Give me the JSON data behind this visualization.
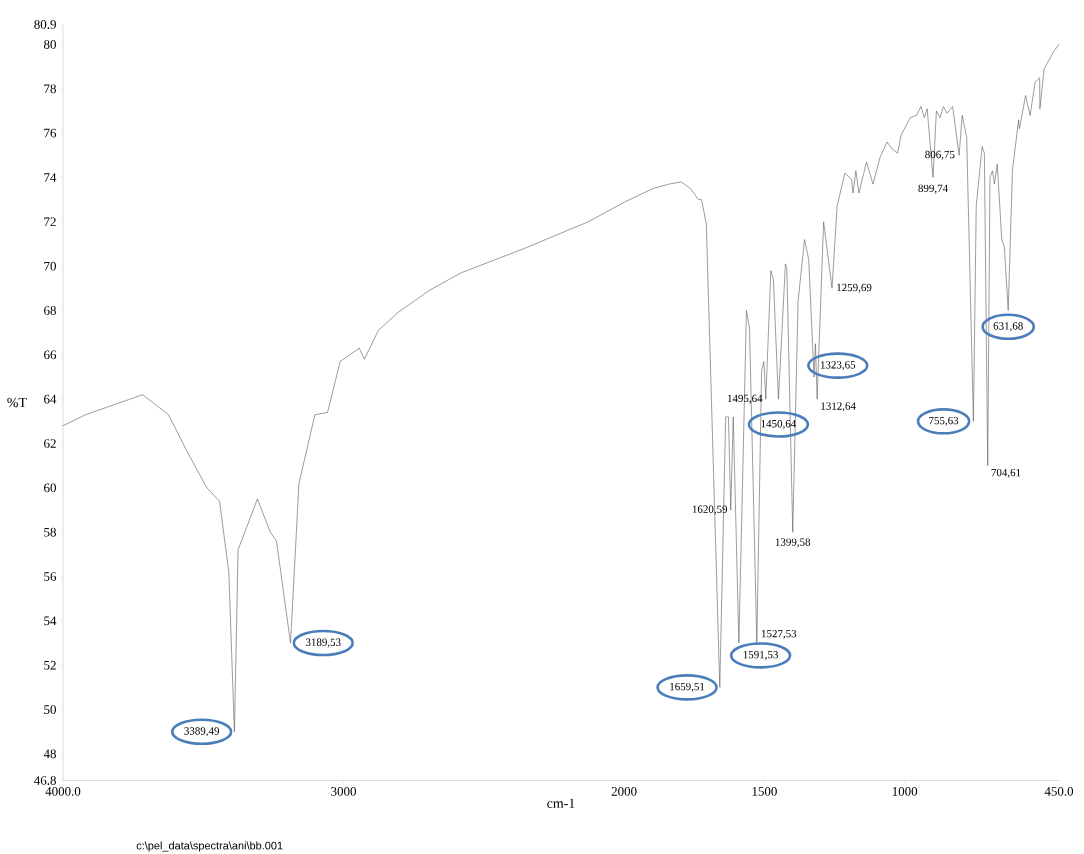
{
  "chart_data": {
    "type": "line",
    "xlabel": "cm-1",
    "ylabel": "%T",
    "xlim": [
      4000,
      450
    ],
    "ylim": [
      46.8,
      80.9
    ],
    "xticks": [
      {
        "value": 4000,
        "label": "4000.0"
      },
      3000,
      2000,
      1500,
      1000,
      {
        "value": 450,
        "label": "450.0"
      }
    ],
    "yticks": [
      46.8,
      48,
      50,
      52,
      54,
      56,
      58,
      60,
      62,
      64,
      66,
      68,
      70,
      72,
      74,
      76,
      78,
      80,
      80.9
    ],
    "grid": false,
    "line_style": "solid",
    "x": [
      4000,
      3919,
      3716,
      3624,
      3556,
      3487,
      3442,
      3409,
      3389,
      3376,
      3340,
      3307,
      3261,
      3239,
      3189,
      3159,
      3102,
      3057,
      3012,
      2944,
      2926,
      2876,
      2807,
      2695,
      2581,
      2355,
      2128,
      1997,
      1897,
      1841,
      1796,
      1764,
      1735,
      1724,
      1707,
      1659,
      1638,
      1628,
      1620,
      1611,
      1591,
      1564,
      1553,
      1527,
      1510,
      1502,
      1495,
      1477,
      1468,
      1450,
      1425,
      1420,
      1399,
      1380,
      1357,
      1342,
      1323,
      1318,
      1312,
      1289,
      1259,
      1241,
      1213,
      1189,
      1184,
      1174,
      1163,
      1136,
      1113,
      1088,
      1063,
      1046,
      1025,
      1013,
      980,
      958,
      942,
      930,
      920,
      899,
      887,
      874,
      862,
      849,
      829,
      806,
      795,
      779,
      755,
      745,
      724,
      716,
      704,
      696,
      687,
      680,
      670,
      654,
      645,
      631,
      616,
      594,
      591,
      569,
      553,
      535,
      519,
      518,
      503,
      468,
      450
    ],
    "series": [
      {
        "color": "#5a5a5a",
        "values": [
          62.8,
          63.3,
          64.2,
          63.3,
          61.6,
          60.0,
          59.4,
          56.2,
          49,
          57.2,
          58.4,
          59.5,
          58.0,
          57.6,
          53,
          60.2,
          63.3,
          63.4,
          65.7,
          66.3,
          65.8,
          67.1,
          67.9,
          68.9,
          69.7,
          70.8,
          72.0,
          72.9,
          73.5,
          73.7,
          73.8,
          73.5,
          73.0,
          73.0,
          71.9,
          51,
          63.2,
          63.2,
          59,
          63.2,
          53,
          68.0,
          67.2,
          53,
          65.3,
          65.7,
          64,
          69.8,
          69.4,
          64,
          70.1,
          69.9,
          58,
          68.4,
          71.2,
          70.3,
          65,
          66.5,
          64,
          72.0,
          69,
          72.7,
          74.2,
          73.9,
          73.3,
          74.3,
          73.3,
          74.7,
          73.7,
          74.9,
          75.6,
          75.3,
          75.1,
          75.9,
          76.7,
          76.8,
          77.2,
          76.7,
          77.1,
          74,
          77.0,
          76.7,
          77.2,
          76.9,
          77.2,
          75,
          76.8,
          75.8,
          63,
          72.7,
          75.4,
          75.1,
          61,
          74.0,
          74.3,
          73.7,
          74.6,
          71.2,
          70.9,
          68,
          74.3,
          76.6,
          76.2,
          77.7,
          76.8,
          78.3,
          78.5,
          77.1,
          78.9,
          79.7,
          80.0
        ]
      }
    ],
    "annotations": [
      {
        "text": "3389,49",
        "x": 3389,
        "y": 49
      },
      {
        "text": "3189,53",
        "x": 3189,
        "y": 53
      },
      {
        "text": "1659,51",
        "x": 1659,
        "y": 51
      },
      {
        "text": "1620,59",
        "x": 1620,
        "y": 59
      },
      {
        "text": "1591,53",
        "x": 1591,
        "y": 53
      },
      {
        "text": "1527,53",
        "x": 1527,
        "y": 53
      },
      {
        "text": "1495,64",
        "x": 1495,
        "y": 64
      },
      {
        "text": "1450,64",
        "x": 1450,
        "y": 64
      },
      {
        "text": "1399,58",
        "x": 1399,
        "y": 58
      },
      {
        "text": "1323,65",
        "x": 1323,
        "y": 65
      },
      {
        "text": "1312,64",
        "x": 1312,
        "y": 64
      },
      {
        "text": "1259,69",
        "x": 1259,
        "y": 69
      },
      {
        "text": "899,74",
        "x": 899,
        "y": 74
      },
      {
        "text": "806,75",
        "x": 806,
        "y": 75
      },
      {
        "text": "755,63",
        "x": 755,
        "y": 63
      },
      {
        "text": "704,61",
        "x": 704,
        "y": 61
      },
      {
        "text": "631,68",
        "x": 631,
        "y": 68
      },
      "c:\\pel_data\\spectra\\ani\\bb.001"
    ]
  }
}
